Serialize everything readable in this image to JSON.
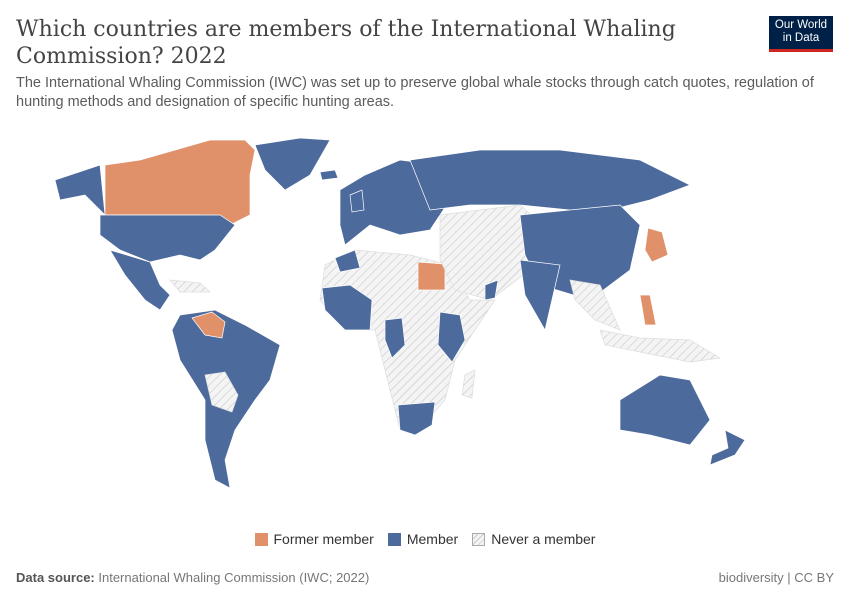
{
  "header": {
    "title": "Which countries are members of the International Whaling Commission? 2022",
    "subtitle": "The International Whaling Commission (IWC) was set up to preserve global whale stocks through catch quotes, regulation of hunting methods and designation of specific hunting areas.",
    "logo": "Our World in Data"
  },
  "legend": {
    "items": [
      {
        "label": "Former member",
        "color": "#e0916a"
      },
      {
        "label": "Member",
        "color": "#4c6a9c"
      },
      {
        "label": "Never a member",
        "color": "hatched"
      }
    ]
  },
  "colors": {
    "former": "#e0916a",
    "member": "#4c6a9c",
    "never": "#eeeeee"
  },
  "footer": {
    "source_label": "Data source:",
    "source": "International Whaling Commission (IWC; 2022)",
    "right": "biodiversity | CC BY"
  }
}
